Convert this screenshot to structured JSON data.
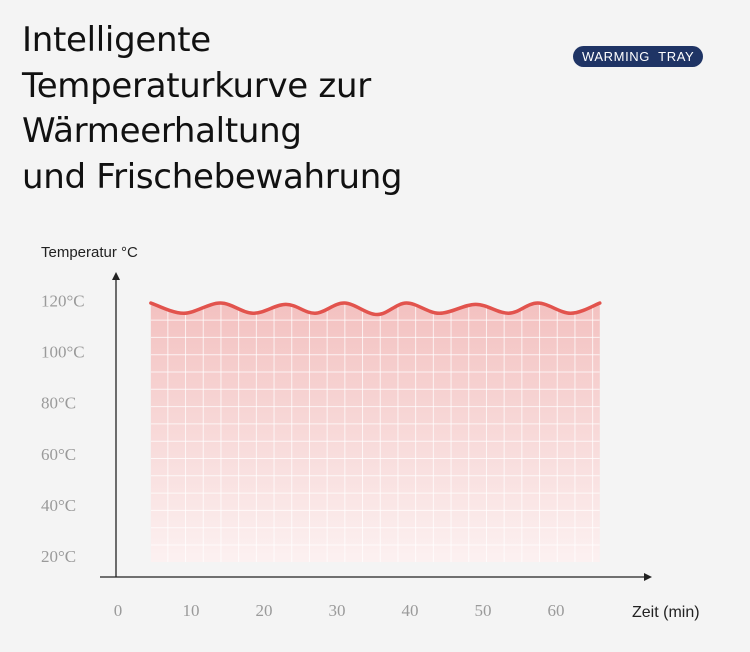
{
  "header": {
    "title_lines": [
      "Intelligente",
      "Temperaturkurve zur",
      "Wärmeerhaltung",
      "und Frischebewahrung"
    ],
    "badge": "WARMING  TRAY"
  },
  "colors": {
    "curve": "#e2534d",
    "fill_top": "#f3c1c0",
    "fill_bottom": "#fcf1f1",
    "badge_bg": "#1f3465",
    "axis": "#222222",
    "tick_label": "#9a9a9a",
    "grid": "#ffffff"
  },
  "chart_data": {
    "type": "area",
    "title": "",
    "xlabel": "Zeit (min)",
    "ylabel": "Temperatur °C",
    "x_ticks": [
      0,
      10,
      20,
      30,
      40,
      50,
      60
    ],
    "y_ticks": [
      20,
      40,
      60,
      80,
      100,
      120
    ],
    "y_tick_labels": [
      "20°C",
      "40°C",
      "60°C",
      "80°C",
      "100°C",
      "120°C"
    ],
    "xlim": [
      0,
      72
    ],
    "ylim": [
      10,
      130
    ],
    "grid": true,
    "series": [
      {
        "x": [
          4.5,
          9,
          14,
          18.5,
          23,
          27,
          31,
          35.5,
          39.5,
          44,
          49,
          53.5,
          57.5,
          62,
          66
        ],
        "values": [
          119,
          115,
          119,
          115,
          118.5,
          115,
          119,
          114.5,
          119,
          115,
          118.5,
          115,
          119,
          115,
          119
        ]
      }
    ]
  }
}
